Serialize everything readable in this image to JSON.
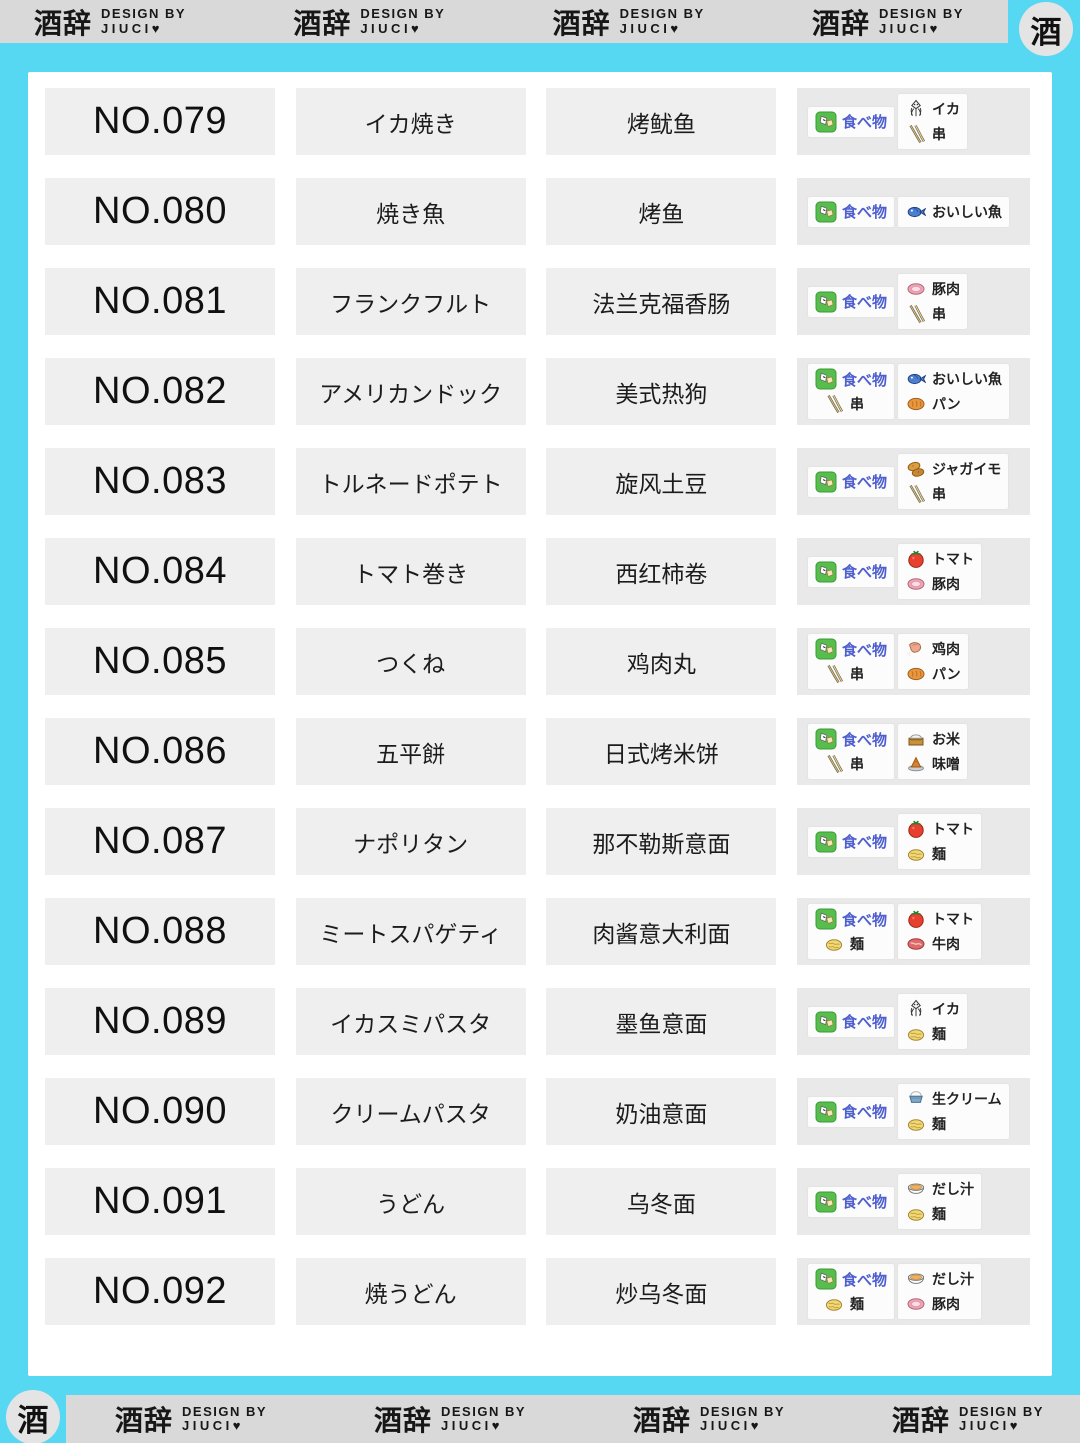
{
  "brand": {
    "logo_text": "酒辞",
    "design_by": "DESIGN BY",
    "name": "JIUCI♥",
    "seal": "酒",
    "header_repeat": 4,
    "footer_repeat": 4
  },
  "colors": {
    "background_cyan": "#57d8f2",
    "bar_gray": "#d9d9d9",
    "card_white": "#ffffff",
    "cell_gray": "#efefef",
    "tag_cell_gray": "#e9e9e9",
    "tag_box_white": "#fcfcfc",
    "category_blue": "#4d5ece",
    "text_dark": "#1c1c1c"
  },
  "rows": [
    {
      "no": "NO.079",
      "jp": "イカ焼き",
      "cn": "烤鱿鱼",
      "tag_groups": [
        {
          "tags": [
            {
              "icon": "food",
              "label": "食べ物",
              "category": true
            }
          ]
        },
        {
          "tags": [
            {
              "icon": "squid",
              "label": "イカ"
            },
            {
              "icon": "skewer",
              "label": "串"
            }
          ]
        }
      ]
    },
    {
      "no": "NO.080",
      "jp": "焼き魚",
      "cn": "烤鱼",
      "tag_groups": [
        {
          "tags": [
            {
              "icon": "food",
              "label": "食べ物",
              "category": true
            }
          ]
        },
        {
          "tags": [
            {
              "icon": "fish",
              "label": "おいしい魚"
            }
          ]
        }
      ]
    },
    {
      "no": "NO.081",
      "jp": "フランクフルト",
      "cn": "法兰克福香肠",
      "tag_groups": [
        {
          "tags": [
            {
              "icon": "food",
              "label": "食べ物",
              "category": true
            }
          ]
        },
        {
          "tags": [
            {
              "icon": "pork",
              "label": "豚肉"
            },
            {
              "icon": "skewer",
              "label": "串"
            }
          ]
        }
      ]
    },
    {
      "no": "NO.082",
      "jp": "アメリカンドック",
      "cn": "美式热狗",
      "tag_groups": [
        {
          "tags": [
            {
              "icon": "food",
              "label": "食べ物",
              "category": true
            },
            {
              "icon": "skewer",
              "label": "串"
            }
          ]
        },
        {
          "tags": [
            {
              "icon": "fish",
              "label": "おいしい魚"
            },
            {
              "icon": "bread",
              "label": "パン"
            }
          ]
        }
      ]
    },
    {
      "no": "NO.083",
      "jp": "トルネードポテト",
      "cn": "旋风土豆",
      "tag_groups": [
        {
          "tags": [
            {
              "icon": "food",
              "label": "食べ物",
              "category": true
            }
          ]
        },
        {
          "tags": [
            {
              "icon": "potato",
              "label": "ジャガイモ"
            },
            {
              "icon": "skewer",
              "label": "串"
            }
          ]
        }
      ]
    },
    {
      "no": "NO.084",
      "jp": "トマト巻き",
      "cn": "西红柿卷",
      "tag_groups": [
        {
          "tags": [
            {
              "icon": "food",
              "label": "食べ物",
              "category": true
            }
          ]
        },
        {
          "tags": [
            {
              "icon": "tomato",
              "label": "トマト"
            },
            {
              "icon": "pork",
              "label": "豚肉"
            }
          ]
        }
      ]
    },
    {
      "no": "NO.085",
      "jp": "つくね",
      "cn": "鸡肉丸",
      "tag_groups": [
        {
          "tags": [
            {
              "icon": "food",
              "label": "食べ物",
              "category": true
            },
            {
              "icon": "skewer",
              "label": "串"
            }
          ]
        },
        {
          "tags": [
            {
              "icon": "chicken",
              "label": "鸡肉"
            },
            {
              "icon": "bread",
              "label": "パン"
            }
          ]
        }
      ]
    },
    {
      "no": "NO.086",
      "jp": "五平餅",
      "cn": "日式烤米饼",
      "tag_groups": [
        {
          "tags": [
            {
              "icon": "food",
              "label": "食べ物",
              "category": true
            },
            {
              "icon": "skewer",
              "label": "串"
            }
          ]
        },
        {
          "tags": [
            {
              "icon": "rice",
              "label": "お米"
            },
            {
              "icon": "miso",
              "label": "味噌"
            }
          ]
        }
      ]
    },
    {
      "no": "NO.087",
      "jp": "ナポリタン",
      "cn": "那不勒斯意面",
      "tag_groups": [
        {
          "tags": [
            {
              "icon": "food",
              "label": "食べ物",
              "category": true
            }
          ]
        },
        {
          "tags": [
            {
              "icon": "tomato",
              "label": "トマト"
            },
            {
              "icon": "noodle",
              "label": "麺"
            }
          ]
        }
      ]
    },
    {
      "no": "NO.088",
      "jp": "ミートスパゲティ",
      "cn": "肉酱意大利面",
      "tag_groups": [
        {
          "tags": [
            {
              "icon": "food",
              "label": "食べ物",
              "category": true
            },
            {
              "icon": "noodle",
              "label": "麺"
            }
          ]
        },
        {
          "tags": [
            {
              "icon": "tomato",
              "label": "トマト"
            },
            {
              "icon": "beef",
              "label": "牛肉"
            }
          ]
        }
      ]
    },
    {
      "no": "NO.089",
      "jp": "イカスミパスタ",
      "cn": "墨鱼意面",
      "tag_groups": [
        {
          "tags": [
            {
              "icon": "food",
              "label": "食べ物",
              "category": true
            }
          ]
        },
        {
          "tags": [
            {
              "icon": "squid",
              "label": "イカ"
            },
            {
              "icon": "noodle",
              "label": "麺"
            }
          ]
        }
      ]
    },
    {
      "no": "NO.090",
      "jp": "クリームパスタ",
      "cn": "奶油意面",
      "tag_groups": [
        {
          "tags": [
            {
              "icon": "food",
              "label": "食べ物",
              "category": true
            }
          ]
        },
        {
          "tags": [
            {
              "icon": "cream",
              "label": "生クリーム"
            },
            {
              "icon": "noodle",
              "label": "麺"
            }
          ]
        }
      ]
    },
    {
      "no": "NO.091",
      "jp": "うどん",
      "cn": "乌冬面",
      "tag_groups": [
        {
          "tags": [
            {
              "icon": "food",
              "label": "食べ物",
              "category": true
            }
          ]
        },
        {
          "tags": [
            {
              "icon": "dashi",
              "label": "だし汁"
            },
            {
              "icon": "noodle",
              "label": "麺"
            }
          ]
        }
      ]
    },
    {
      "no": "NO.092",
      "jp": "焼うどん",
      "cn": "炒乌冬面",
      "tag_groups": [
        {
          "tags": [
            {
              "icon": "food",
              "label": "食べ物",
              "category": true
            },
            {
              "icon": "noodle",
              "label": "麺"
            }
          ]
        },
        {
          "tags": [
            {
              "icon": "dashi",
              "label": "だし汁"
            },
            {
              "icon": "pork",
              "label": "豚肉"
            }
          ]
        }
      ]
    }
  ]
}
